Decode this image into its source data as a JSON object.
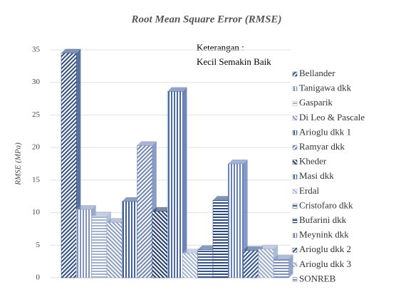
{
  "chart_data": {
    "type": "bar3d",
    "title": "Root Mean Square Error (RMSE)",
    "y_label": "RMSE (MPa)",
    "annotation": [
      "Keterangan  :",
      "Kecil Semakin Baik"
    ],
    "ylim": [
      0,
      35
    ],
    "yticks": [
      0,
      5,
      10,
      15,
      20,
      25,
      30,
      35
    ],
    "grid": true,
    "series": [
      {
        "name": "Bellander",
        "color": "#2f4f86",
        "values": [
          34.5
        ]
      },
      {
        "name": "Tanigawa dkk",
        "color": "#7f93bd",
        "values": [
          10.5
        ]
      },
      {
        "name": "Gasparik",
        "color": "#9fb0d0",
        "values": [
          9.5
        ]
      },
      {
        "name": "Di Leo & Pascale",
        "color": "#8a9cc4",
        "values": [
          8.5
        ]
      },
      {
        "name": "Arioglu dkk 1",
        "color": "#3d5e99",
        "values": [
          11.7
        ]
      },
      {
        "name": "Ramyar dkk",
        "color": "#6d84b5",
        "values": [
          20.3
        ]
      },
      {
        "name": "Kheder",
        "color": "#1f3a6e",
        "values": [
          10.2
        ]
      },
      {
        "name": "Masi dkk",
        "color": "#4a68a3",
        "values": [
          28.6
        ]
      },
      {
        "name": "Erdal",
        "color": "#a3b3d3",
        "values": [
          3.8
        ]
      },
      {
        "name": "Cristofaro dkk",
        "color": "#3a5994",
        "values": [
          4.3
        ]
      },
      {
        "name": "Bufarini dkk",
        "color": "#2b4a85",
        "values": [
          11.9
        ]
      },
      {
        "name": "Meynink dkk",
        "color": "#6580b8",
        "values": [
          17.5
        ]
      },
      {
        "name": "Arioglu dkk 2",
        "color": "#345490",
        "values": [
          4.2
        ]
      },
      {
        "name": "Arioglu dkk 3",
        "color": "#9aaace",
        "values": [
          4.4
        ]
      },
      {
        "name": "SONREB",
        "color": "#7a8fbc",
        "values": [
          2.9
        ]
      }
    ]
  }
}
